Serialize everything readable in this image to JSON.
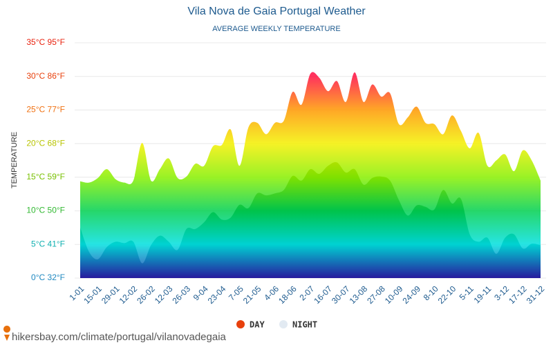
{
  "chart_data": {
    "type": "area",
    "title": "Vila Nova de Gaia Portugal Weather",
    "subtitle": "AVERAGE WEEKLY TEMPERATURE",
    "y_label": "TEMPERATURE",
    "source": "hikersbay.com/climate/portugal/vilanovadegaia",
    "categories": [
      "1-01",
      null,
      "15-01",
      null,
      "29-01",
      null,
      "12-02",
      null,
      "26-02",
      null,
      "12-03",
      null,
      "26-03",
      null,
      "9-04",
      null,
      "23-04",
      null,
      "7-05",
      null,
      "21-05",
      null,
      "4-06",
      null,
      "18-06",
      null,
      "2-07",
      null,
      "16-07",
      null,
      "30-07",
      null,
      "13-08",
      null,
      "27-08",
      null,
      "10-09",
      null,
      "24-09",
      null,
      "8-10",
      null,
      "22-10",
      null,
      "5-11",
      null,
      "19-11",
      null,
      "3-12",
      null,
      "17-12",
      null,
      "31-12"
    ],
    "series": [
      {
        "name": "DAY",
        "color": "#e8400c",
        "values": [
          14.4,
          14.2,
          14.9,
          16.2,
          14.7,
          14.2,
          14.5,
          20.1,
          14.5,
          16.2,
          17.8,
          14.9,
          15.1,
          17.0,
          16.7,
          19.6,
          19.8,
          22.1,
          16.7,
          22.4,
          23.1,
          21.4,
          23.1,
          23.4,
          27.7,
          25.8,
          30.4,
          29.8,
          27.8,
          29.3,
          26.2,
          30.6,
          26.2,
          28.8,
          27.0,
          27.5,
          22.9,
          23.9,
          25.5,
          23.1,
          22.9,
          21.4,
          24.2,
          21.9,
          19.3,
          21.6,
          16.7,
          17.5,
          18.4,
          15.9,
          19.0,
          17.5,
          14.5
        ]
      },
      {
        "name": "NIGHT",
        "color": "#e2eaf2",
        "values": [
          7.5,
          3.9,
          2.8,
          4.6,
          5.4,
          5.2,
          5.4,
          2.2,
          4.9,
          6.3,
          5.4,
          4.2,
          7.3,
          7.3,
          8.3,
          9.8,
          8.7,
          9.0,
          10.9,
          10.4,
          12.6,
          12.3,
          12.6,
          13.1,
          15.2,
          14.5,
          16.2,
          15.5,
          16.7,
          17.2,
          15.7,
          16.2,
          13.9,
          14.9,
          15.1,
          14.5,
          11.6,
          9.3,
          10.8,
          10.6,
          10.2,
          13.1,
          11.1,
          11.8,
          6.5,
          5.4,
          6.0,
          3.6,
          6.0,
          6.5,
          4.4,
          5.1,
          4.9
        ]
      }
    ],
    "ylim": [
      0,
      35
    ],
    "yticks": [
      {
        "value": 0,
        "label": "0°C 32°F"
      },
      {
        "value": 5,
        "label": "5°C 41°F"
      },
      {
        "value": 10,
        "label": "10°C 50°F"
      },
      {
        "value": 15,
        "label": "15°C 59°F"
      },
      {
        "value": 20,
        "label": "20°C 68°F"
      },
      {
        "value": 25,
        "label": "25°C 77°F"
      },
      {
        "value": 30,
        "label": "30°C 86°F"
      },
      {
        "value": 35,
        "label": "35°C 95°F"
      }
    ],
    "fill_colors": [
      "#2a1ca8",
      "#00e0e0",
      "#00d050",
      "#88f000",
      "#f4f000",
      "#ff9800",
      "#ff1040",
      "#ff0060"
    ],
    "tick_label_colors": [
      "#1e88c0",
      "#10b0b0",
      "#30b830",
      "#78c000",
      "#b8c400",
      "#f07010",
      "#e8400c",
      "#e8200c"
    ],
    "grid": true,
    "legend": "bottom"
  }
}
